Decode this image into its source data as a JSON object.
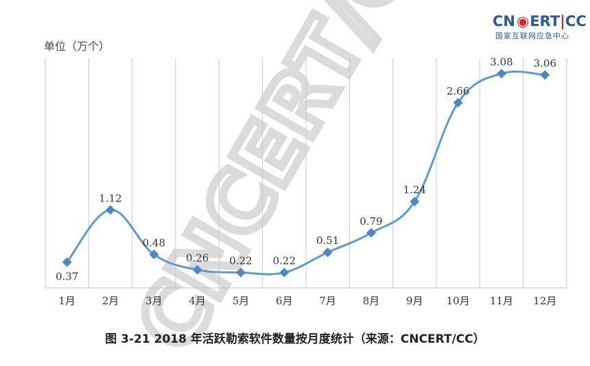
{
  "logo": {
    "main_a": "CN",
    "main_b": "ERT",
    "main_c": "CC",
    "sub": "国家互联网应急中心"
  },
  "watermark": "CNCERT/CC",
  "colors": {
    "line": "#5b9bd5",
    "marker": "#4f86c6",
    "grid": "#c8c8c8",
    "logo_blue": "#2a5a9e",
    "logo_red": "#d8272d"
  },
  "chart_data": {
    "type": "line",
    "title": "图 3-21   2018 年活跃勒索软件数量按月度统计（来源：CNCERT/CC）",
    "ylabel": "单位（万个）",
    "xlabel": "",
    "categories": [
      "1月",
      "2月",
      "3月",
      "4月",
      "5月",
      "6月",
      "7月",
      "8月",
      "9月",
      "10月",
      "11月",
      "12月"
    ],
    "values": [
      0.37,
      1.12,
      0.48,
      0.26,
      0.22,
      0.22,
      0.51,
      0.79,
      1.24,
      2.66,
      3.08,
      3.06
    ],
    "value_labels": [
      "0.37",
      "1.12",
      "0.48",
      "0.26",
      "0.22",
      "0.22",
      "0.51",
      "0.79",
      "1.24",
      "2.66",
      "3.08",
      "3.06"
    ],
    "ylim": [
      0,
      3.3
    ],
    "grid": "vertical",
    "smooth": true
  }
}
